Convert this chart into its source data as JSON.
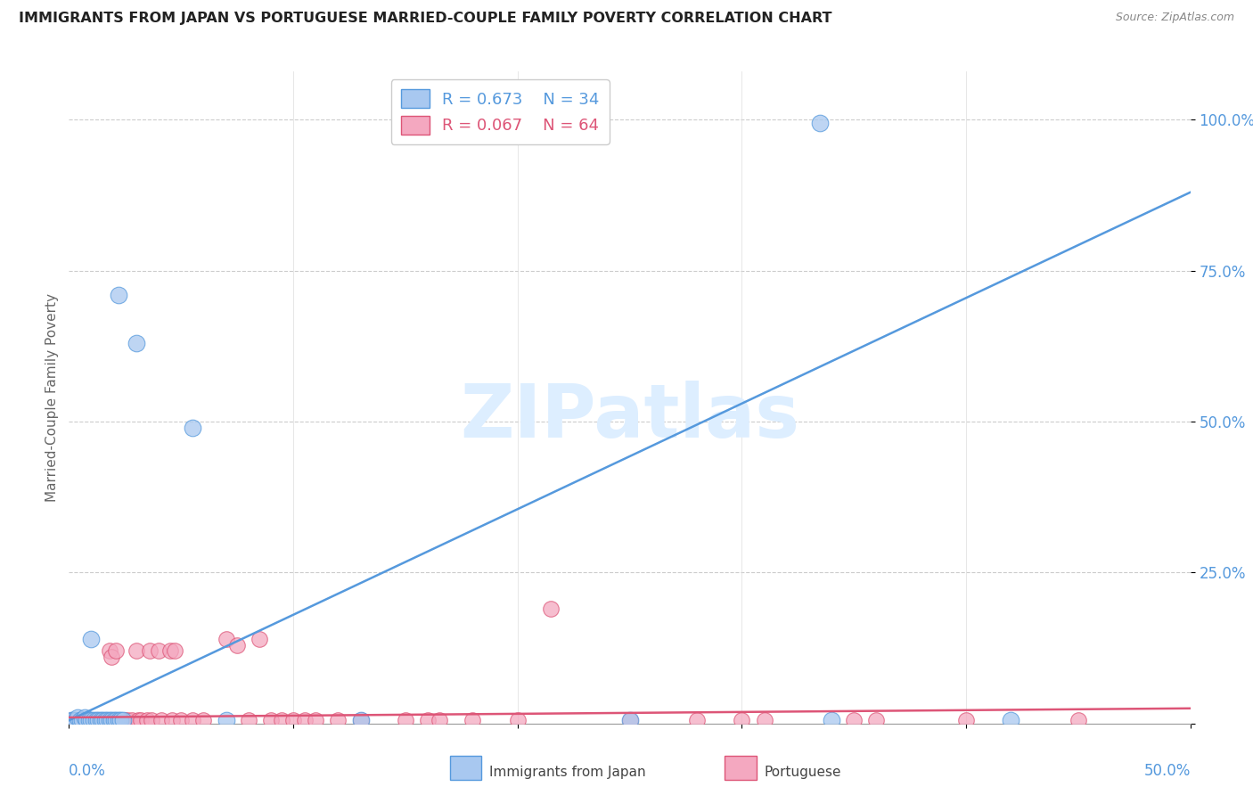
{
  "title": "IMMIGRANTS FROM JAPAN VS PORTUGUESE MARRIED-COUPLE FAMILY POVERTY CORRELATION CHART",
  "source": "Source: ZipAtlas.com",
  "ylabel": "Married-Couple Family Poverty",
  "yticks": [
    0.0,
    0.25,
    0.5,
    0.75,
    1.0
  ],
  "ytick_labels": [
    "",
    "25.0%",
    "50.0%",
    "75.0%",
    "100.0%"
  ],
  "xlim": [
    0.0,
    0.5
  ],
  "ylim": [
    0.0,
    1.08
  ],
  "legend_japan_R": "R = 0.673",
  "legend_japan_N": "N = 34",
  "legend_port_R": "R = 0.067",
  "legend_port_N": "N = 64",
  "color_japan": "#a8c8f0",
  "color_port": "#f4a8c0",
  "line_color_japan": "#5599dd",
  "line_color_port": "#dd5577",
  "tick_color": "#5599dd",
  "watermark_text": "ZIPatlas",
  "japan_line": [
    0.0,
    0.005,
    0.5,
    0.88
  ],
  "port_line": [
    0.0,
    0.01,
    0.5,
    0.025
  ],
  "japan_points": [
    [
      0.001,
      0.005
    ],
    [
      0.002,
      0.005
    ],
    [
      0.003,
      0.005
    ],
    [
      0.004,
      0.01
    ],
    [
      0.005,
      0.005
    ],
    [
      0.006,
      0.005
    ],
    [
      0.007,
      0.01
    ],
    [
      0.008,
      0.005
    ],
    [
      0.009,
      0.005
    ],
    [
      0.01,
      0.005
    ],
    [
      0.011,
      0.005
    ],
    [
      0.012,
      0.005
    ],
    [
      0.013,
      0.005
    ],
    [
      0.014,
      0.005
    ],
    [
      0.015,
      0.005
    ],
    [
      0.016,
      0.005
    ],
    [
      0.017,
      0.005
    ],
    [
      0.018,
      0.005
    ],
    [
      0.019,
      0.005
    ],
    [
      0.02,
      0.005
    ],
    [
      0.021,
      0.005
    ],
    [
      0.022,
      0.005
    ],
    [
      0.023,
      0.005
    ],
    [
      0.024,
      0.005
    ],
    [
      0.01,
      0.14
    ],
    [
      0.022,
      0.71
    ],
    [
      0.03,
      0.63
    ],
    [
      0.055,
      0.49
    ],
    [
      0.07,
      0.005
    ],
    [
      0.13,
      0.005
    ],
    [
      0.25,
      0.005
    ],
    [
      0.34,
      0.005
    ],
    [
      0.42,
      0.005
    ],
    [
      0.335,
      0.995
    ]
  ],
  "port_points": [
    [
      0.001,
      0.005
    ],
    [
      0.002,
      0.005
    ],
    [
      0.003,
      0.005
    ],
    [
      0.004,
      0.005
    ],
    [
      0.005,
      0.005
    ],
    [
      0.006,
      0.005
    ],
    [
      0.007,
      0.005
    ],
    [
      0.008,
      0.005
    ],
    [
      0.009,
      0.005
    ],
    [
      0.01,
      0.005
    ],
    [
      0.011,
      0.005
    ],
    [
      0.012,
      0.005
    ],
    [
      0.013,
      0.005
    ],
    [
      0.014,
      0.005
    ],
    [
      0.015,
      0.005
    ],
    [
      0.016,
      0.005
    ],
    [
      0.017,
      0.005
    ],
    [
      0.018,
      0.12
    ],
    [
      0.019,
      0.11
    ],
    [
      0.02,
      0.005
    ],
    [
      0.021,
      0.12
    ],
    [
      0.022,
      0.005
    ],
    [
      0.025,
      0.005
    ],
    [
      0.026,
      0.005
    ],
    [
      0.028,
      0.005
    ],
    [
      0.03,
      0.12
    ],
    [
      0.031,
      0.005
    ],
    [
      0.032,
      0.005
    ],
    [
      0.035,
      0.005
    ],
    [
      0.036,
      0.12
    ],
    [
      0.037,
      0.005
    ],
    [
      0.04,
      0.12
    ],
    [
      0.041,
      0.005
    ],
    [
      0.045,
      0.12
    ],
    [
      0.046,
      0.005
    ],
    [
      0.047,
      0.12
    ],
    [
      0.05,
      0.005
    ],
    [
      0.055,
      0.005
    ],
    [
      0.06,
      0.005
    ],
    [
      0.07,
      0.14
    ],
    [
      0.075,
      0.13
    ],
    [
      0.08,
      0.005
    ],
    [
      0.085,
      0.14
    ],
    [
      0.09,
      0.005
    ],
    [
      0.095,
      0.005
    ],
    [
      0.1,
      0.005
    ],
    [
      0.105,
      0.005
    ],
    [
      0.11,
      0.005
    ],
    [
      0.12,
      0.005
    ],
    [
      0.13,
      0.005
    ],
    [
      0.15,
      0.005
    ],
    [
      0.16,
      0.005
    ],
    [
      0.165,
      0.005
    ],
    [
      0.18,
      0.005
    ],
    [
      0.2,
      0.005
    ],
    [
      0.215,
      0.19
    ],
    [
      0.25,
      0.005
    ],
    [
      0.28,
      0.005
    ],
    [
      0.3,
      0.005
    ],
    [
      0.31,
      0.005
    ],
    [
      0.35,
      0.005
    ],
    [
      0.36,
      0.005
    ],
    [
      0.4,
      0.005
    ],
    [
      0.45,
      0.005
    ]
  ]
}
